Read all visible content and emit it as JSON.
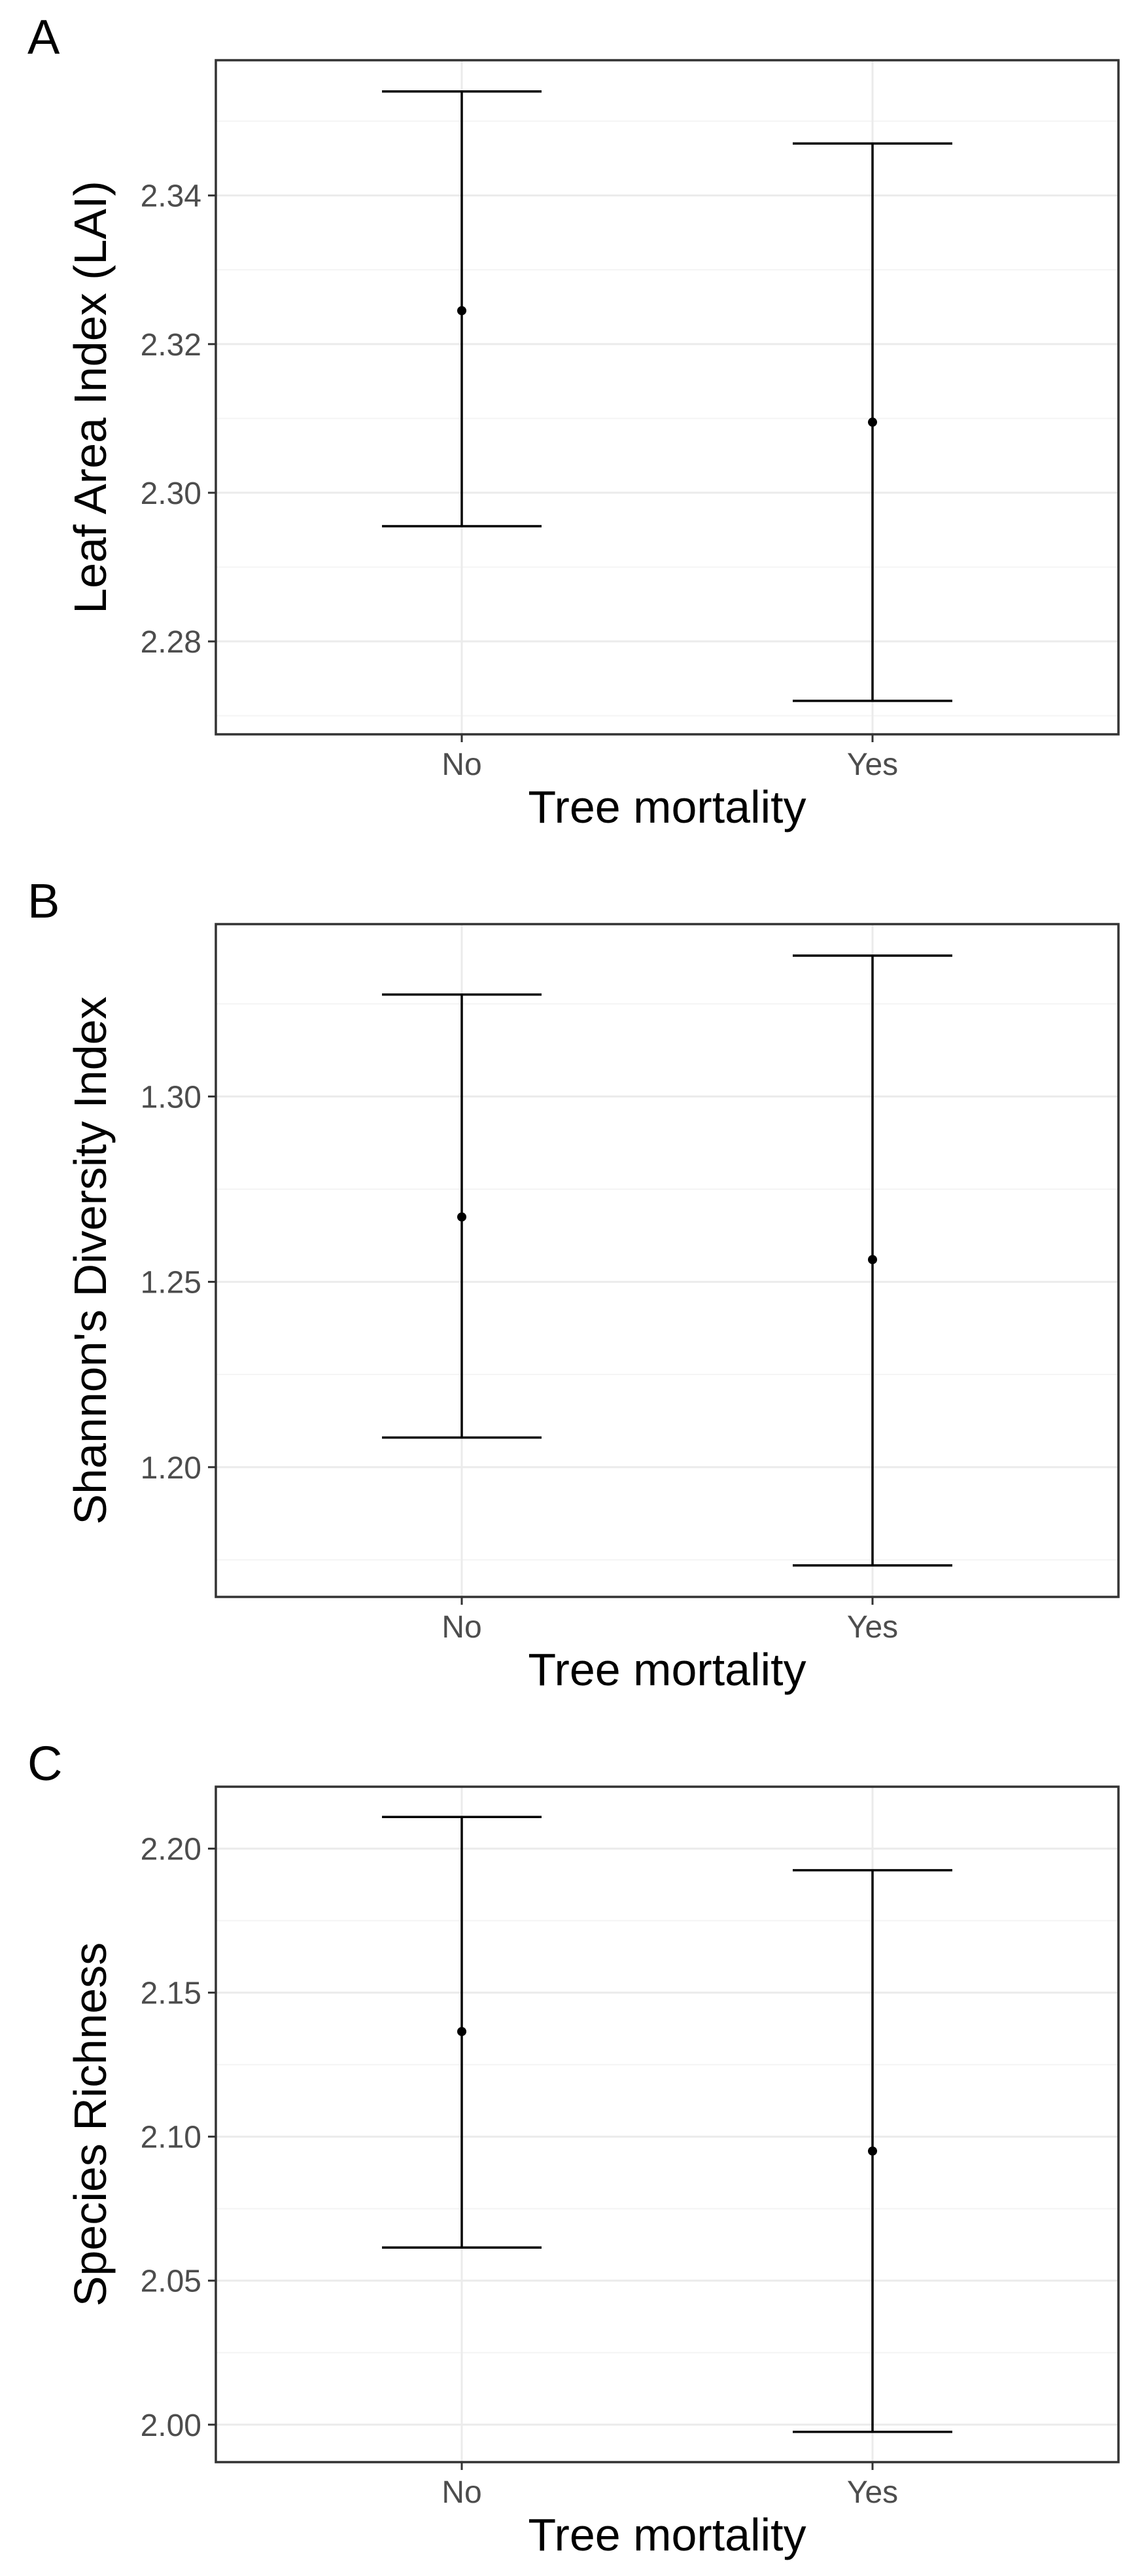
{
  "chart_data": [
    {
      "panel_label": "A",
      "type": "errorbar",
      "xlabel": "Tree mortality",
      "ylabel": "Leaf Area Index (LAI)",
      "categories": [
        "No",
        "Yes"
      ],
      "mean": [
        2.3245,
        2.3095
      ],
      "lower": [
        2.2955,
        2.272
      ],
      "upper": [
        2.354,
        2.347
      ],
      "ylim": [
        2.2675,
        2.3582
      ],
      "yticks": [
        2.28,
        2.3,
        2.32,
        2.34
      ],
      "ytick_labels": [
        "2.28",
        "2.30",
        "2.32",
        "2.34"
      ],
      "grid": true
    },
    {
      "panel_label": "B",
      "type": "errorbar",
      "xlabel": "Tree mortality",
      "ylabel": "Shannon's Diversity Index",
      "categories": [
        "No",
        "Yes"
      ],
      "mean": [
        1.2675,
        1.256
      ],
      "lower": [
        1.208,
        1.1735
      ],
      "upper": [
        1.3275,
        1.338
      ],
      "ylim": [
        1.165,
        1.3465
      ],
      "yticks": [
        1.2,
        1.25,
        1.3
      ],
      "ytick_labels": [
        "1.20",
        "1.25",
        "1.30"
      ],
      "grid": true
    },
    {
      "panel_label": "C",
      "type": "errorbar",
      "xlabel": "Tree mortality",
      "ylabel": "Species Richness",
      "categories": [
        "No",
        "Yes"
      ],
      "mean": [
        2.1365,
        2.095
      ],
      "lower": [
        2.0615,
        1.9975
      ],
      "upper": [
        2.211,
        2.1925
      ],
      "ylim": [
        1.987,
        2.2215
      ],
      "yticks": [
        2.0,
        2.05,
        2.1,
        2.15,
        2.2
      ],
      "ytick_labels": [
        "2.00",
        "2.05",
        "2.10",
        "2.15",
        "2.20"
      ],
      "grid": true
    }
  ]
}
